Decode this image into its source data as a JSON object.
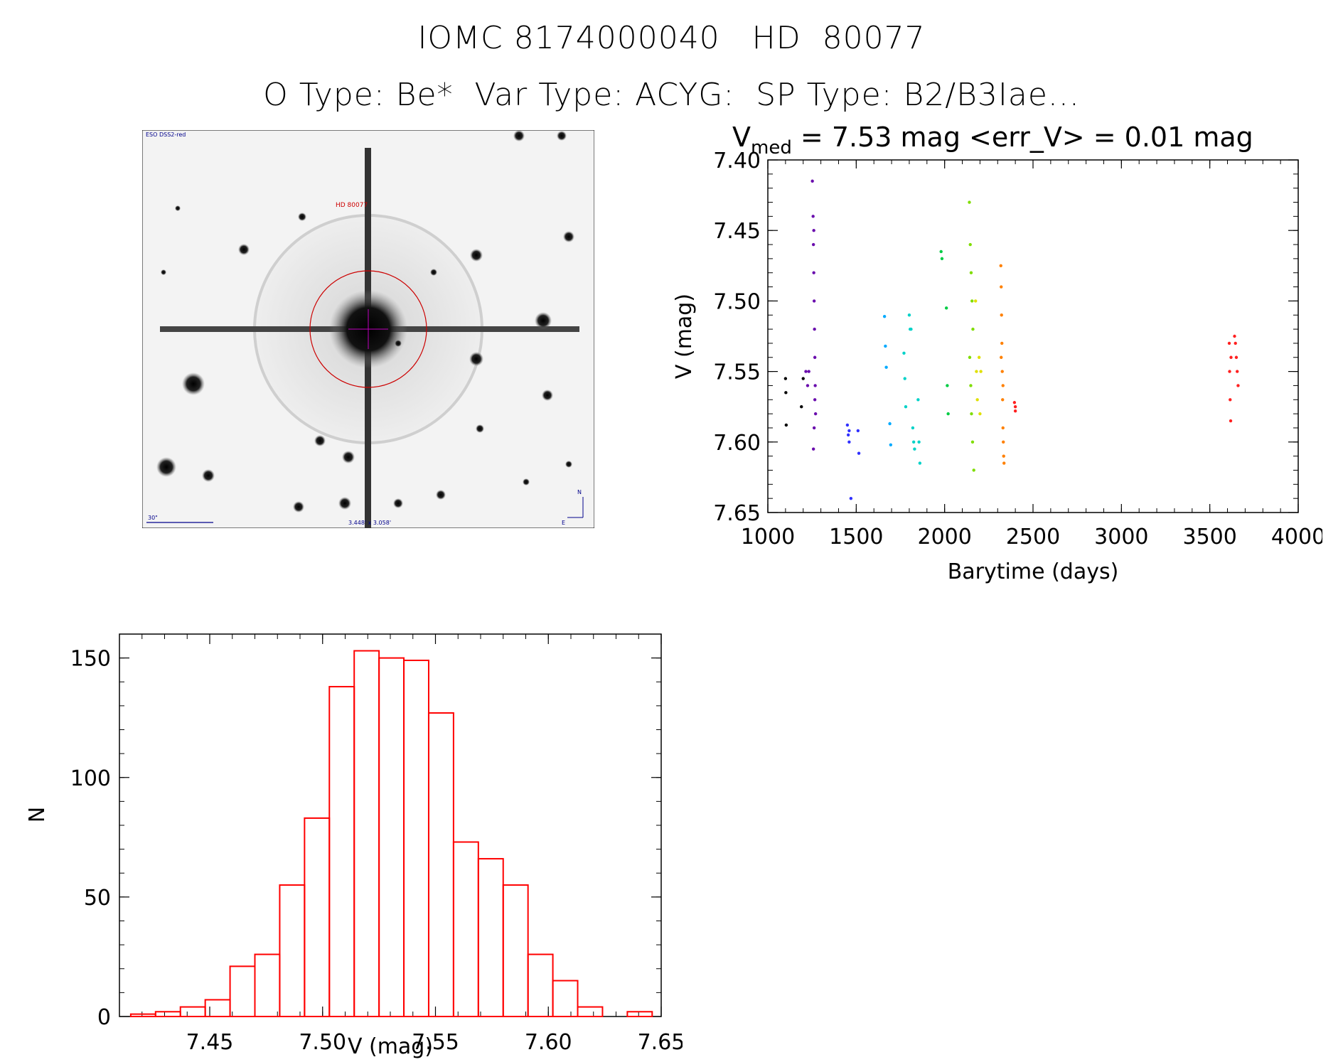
{
  "header": {
    "title": "IOMC 8174000040   HD  80077",
    "subtitle": "O Type: Be*  Var Type: ACYG:  SP Type: B2/B3Iae..."
  },
  "image_panel": {
    "corner_label": "ESO DSS2-red",
    "target_label": "HD 80077",
    "scale_label": "30\"",
    "fov_label": "3.448' x 3.058'",
    "north_label": "N",
    "east_label": "E"
  },
  "chart_data": [
    {
      "type": "scatter",
      "title_main": "V",
      "title_sub": "med",
      "title_rest": " = 7.53 mag <err_V> = 0.01 mag",
      "xlabel": "Barytime (days)",
      "ylabel": "V (mag)",
      "xlim": [
        1000,
        4000
      ],
      "ylim": [
        7.65,
        7.4
      ],
      "y_inverted": true,
      "xticks": [
        "1000",
        "1500",
        "2000",
        "2500",
        "3000",
        "3500",
        "4000"
      ],
      "yticks": [
        "7.40",
        "7.45",
        "7.50",
        "7.55",
        "7.60",
        "7.65"
      ],
      "series": [
        {
          "color": "#000000",
          "x": [
            1100,
            1102,
            1104,
            1190,
            1200
          ],
          "y": [
            7.555,
            7.565,
            7.588,
            7.575,
            7.555
          ]
        },
        {
          "color": "#6a0dad",
          "x": [
            1215,
            1225,
            1232,
            1252,
            1256,
            1258,
            1260,
            1262,
            1264,
            1266,
            1268,
            1270,
            1262,
            1258,
            1266,
            1260
          ],
          "y": [
            7.55,
            7.56,
            7.55,
            7.415,
            7.44,
            7.46,
            7.48,
            7.5,
            7.52,
            7.54,
            7.56,
            7.58,
            7.59,
            7.605,
            7.57,
            7.45
          ]
        },
        {
          "color": "#3030ff",
          "x": [
            1450,
            1455,
            1460,
            1470,
            1510,
            1515,
            1460
          ],
          "y": [
            7.588,
            7.595,
            7.6,
            7.64,
            7.592,
            7.608,
            7.592
          ]
        },
        {
          "color": "#00aaff",
          "x": [
            1660,
            1665,
            1670,
            1690,
            1695
          ],
          "y": [
            7.511,
            7.532,
            7.547,
            7.587,
            7.602
          ]
        },
        {
          "color": "#00d2c8",
          "x": [
            1770,
            1775,
            1780,
            1800,
            1805,
            1810,
            1820,
            1825,
            1830,
            1850,
            1855,
            1860
          ],
          "y": [
            7.537,
            7.555,
            7.575,
            7.51,
            7.52,
            7.52,
            7.59,
            7.6,
            7.605,
            7.57,
            7.6,
            7.615
          ]
        },
        {
          "color": "#00cc44",
          "x": [
            1980,
            1985,
            2010,
            2015,
            2020
          ],
          "y": [
            7.465,
            7.47,
            7.505,
            7.56,
            7.58
          ]
        },
        {
          "color": "#7fdd00",
          "x": [
            2140,
            2145,
            2150,
            2155,
            2160,
            2142,
            2148,
            2152,
            2158,
            2165
          ],
          "y": [
            7.43,
            7.46,
            7.48,
            7.5,
            7.52,
            7.54,
            7.56,
            7.58,
            7.6,
            7.62
          ]
        },
        {
          "color": "#e0e000",
          "x": [
            2175,
            2180,
            2185,
            2195,
            2200,
            2205
          ],
          "y": [
            7.5,
            7.55,
            7.57,
            7.54,
            7.58,
            7.55
          ]
        },
        {
          "color": "#ff8000",
          "x": [
            2318,
            2320,
            2322,
            2324,
            2326,
            2328,
            2330,
            2332,
            2334,
            2336,
            2320,
            2330
          ],
          "y": [
            7.475,
            7.49,
            7.51,
            7.53,
            7.55,
            7.57,
            7.59,
            7.6,
            7.61,
            7.615,
            7.54,
            7.56
          ]
        },
        {
          "color": "#ff2020",
          "x": [
            2395,
            2400,
            2400,
            3610,
            3612,
            3615,
            3618,
            3620,
            3640,
            3645,
            3650,
            3655,
            3660
          ],
          "y": [
            7.572,
            7.575,
            7.578,
            7.53,
            7.55,
            7.57,
            7.585,
            7.54,
            7.525,
            7.53,
            7.54,
            7.55,
            7.56
          ]
        }
      ]
    },
    {
      "type": "bar",
      "subtype": "histogram",
      "xlabel": "V (mag)",
      "ylabel": "N",
      "xlim": [
        7.41,
        7.65
      ],
      "ylim": [
        0,
        160
      ],
      "xticks": [
        "7.45",
        "7.50",
        "7.55",
        "7.60",
        "7.65"
      ],
      "yticks": [
        "0",
        "50",
        "100",
        "150"
      ],
      "bin_width": 0.011,
      "bin_start": 7.415,
      "values": [
        1,
        2,
        4,
        7,
        21,
        26,
        55,
        83,
        138,
        153,
        150,
        149,
        127,
        73,
        66,
        55,
        26,
        15,
        4,
        0,
        2
      ],
      "color": "#ff0000"
    }
  ]
}
